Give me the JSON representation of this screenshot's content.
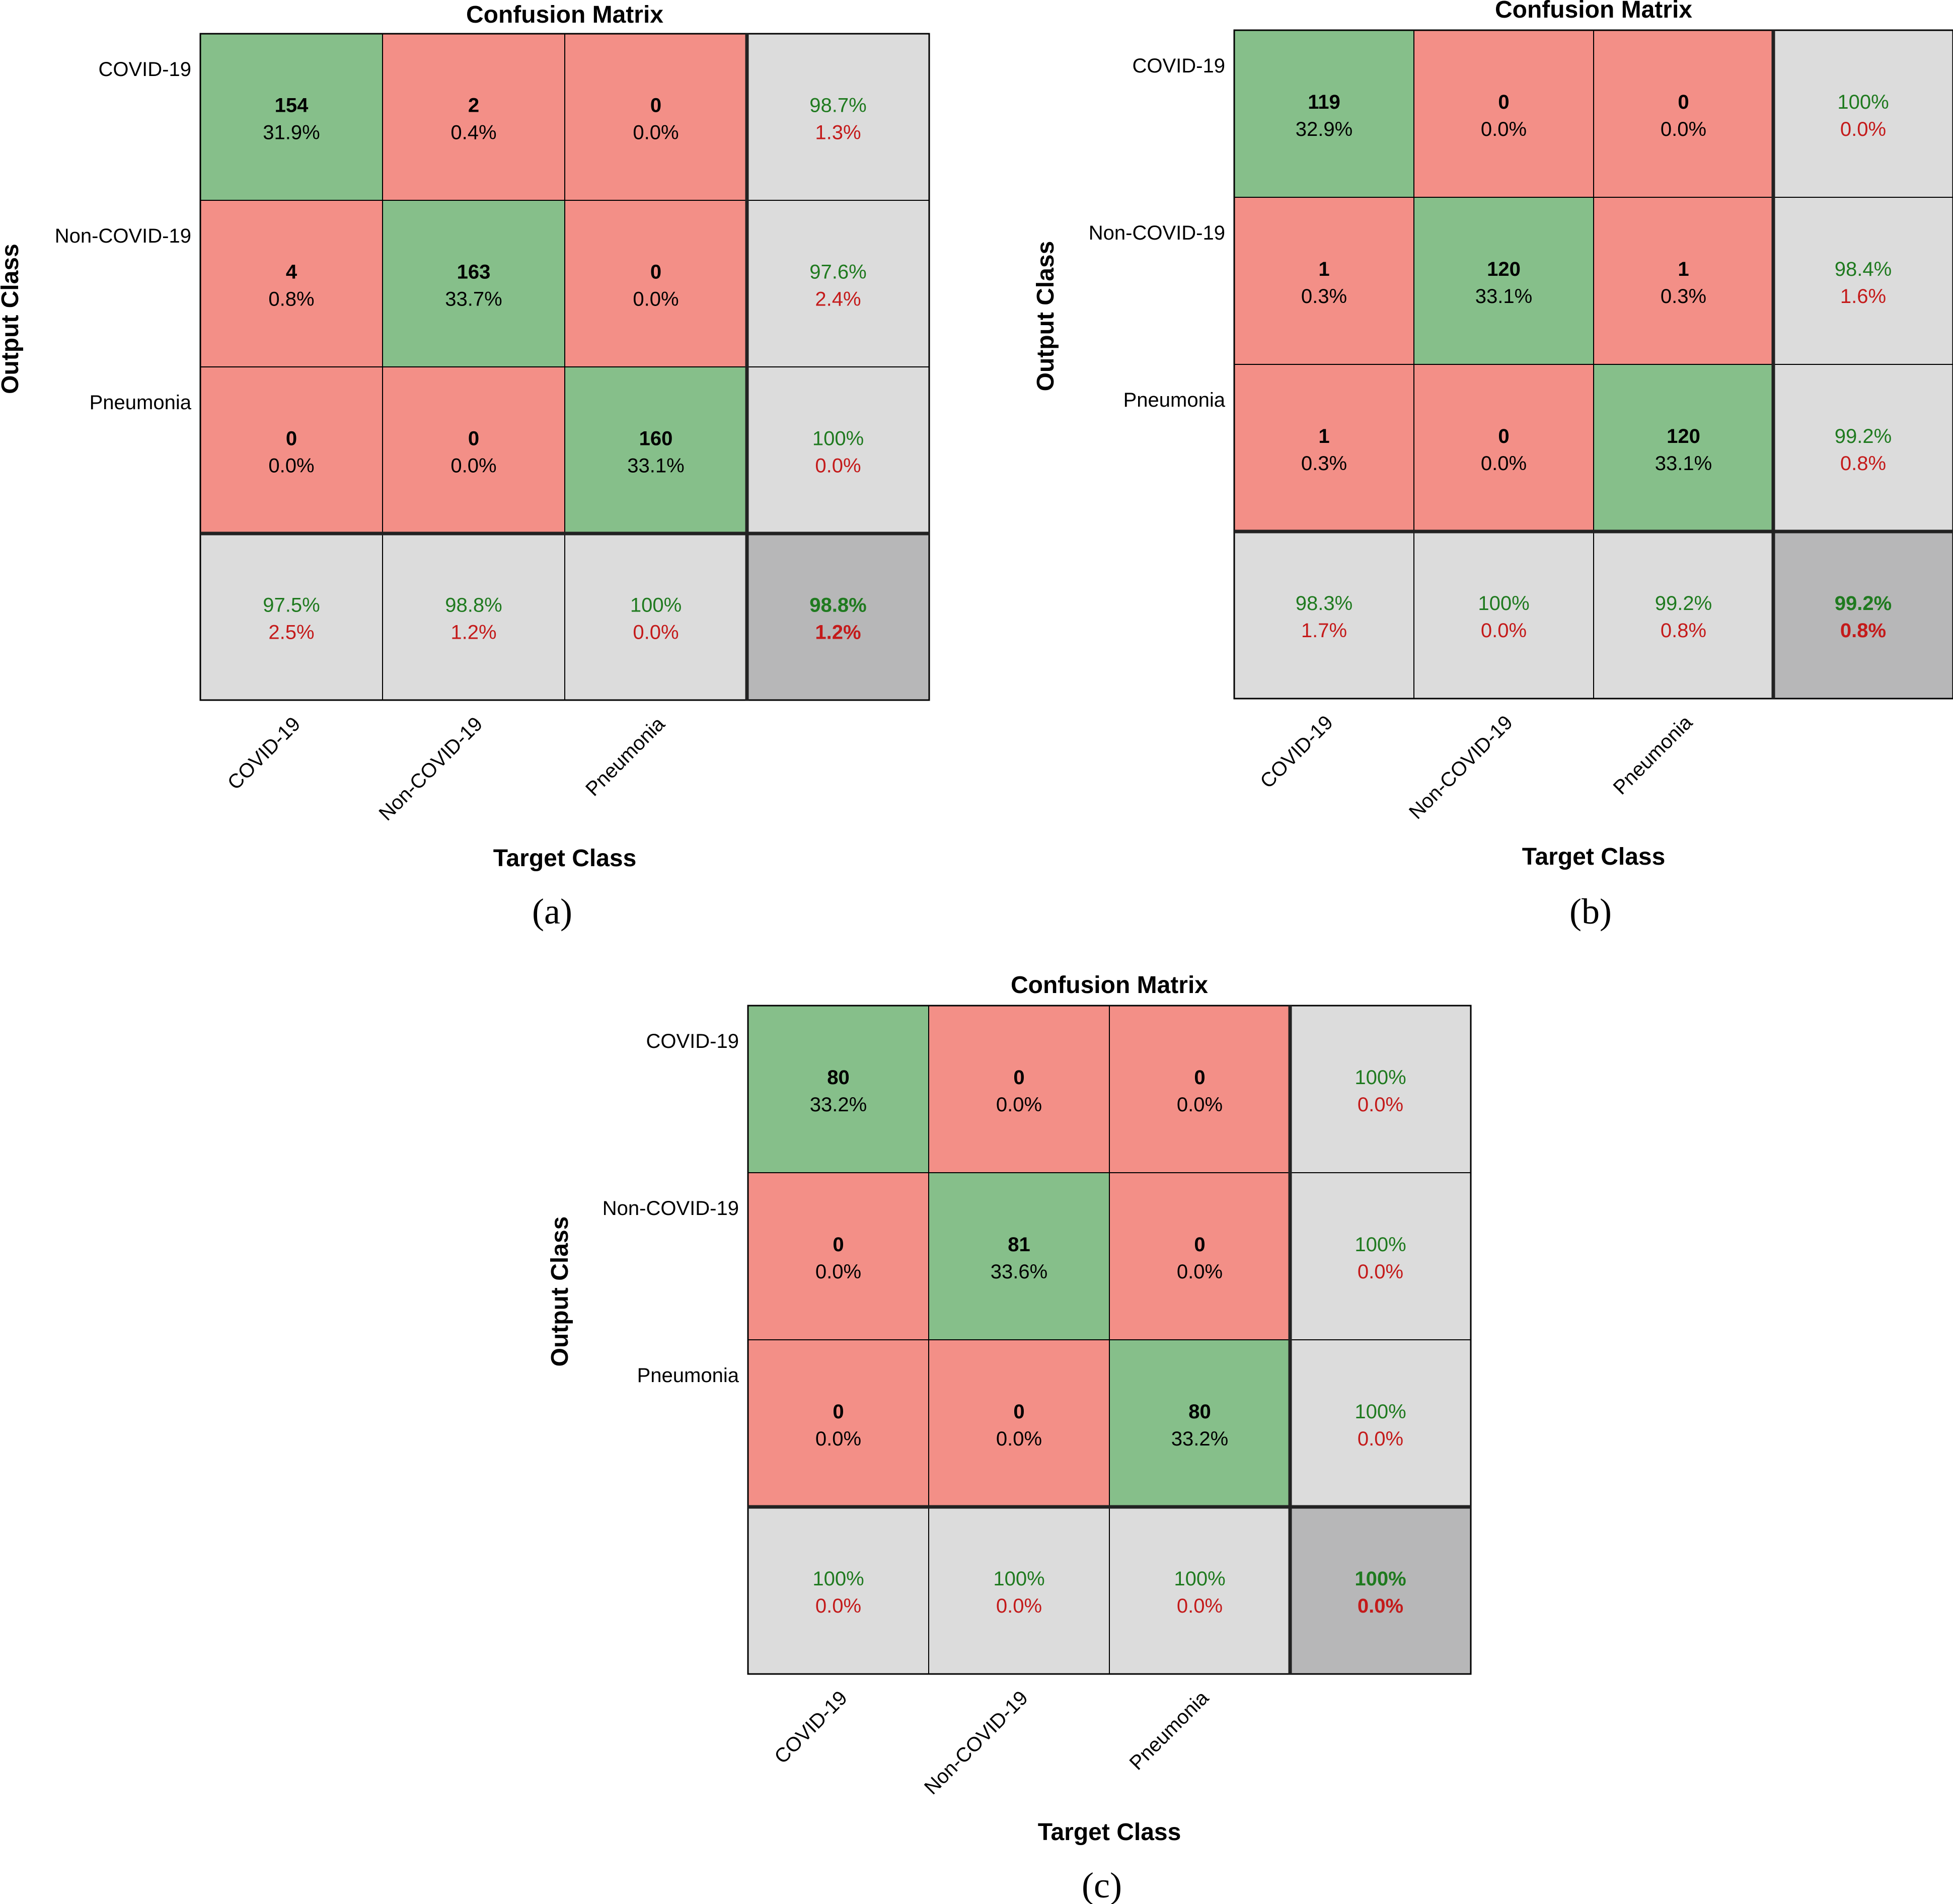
{
  "colors": {
    "correct": "#86bf8a",
    "incorrect": "#f38f87",
    "summary": "#dcdcdc",
    "overall": "#b7b7b8",
    "good_text": "#1f7a1f",
    "bad_text": "#c41a1a",
    "grid": "#000000"
  },
  "chart_data": [
    {
      "type": "table",
      "panel": "a",
      "caption": "(a)",
      "title": "Confusion Matrix",
      "xlabel": "Target Class",
      "ylabel": "Output Class",
      "classes": [
        "COVID-19",
        "Non-COVID-19",
        "Pneumonia"
      ],
      "counts": [
        [
          154,
          2,
          0
        ],
        [
          4,
          163,
          0
        ],
        [
          0,
          0,
          160
        ]
      ],
      "cell_percent": [
        [
          "31.9%",
          "0.4%",
          "0.0%"
        ],
        [
          "0.8%",
          "33.7%",
          "0.0%"
        ],
        [
          "0.0%",
          "0.0%",
          "33.1%"
        ]
      ],
      "row_summary": [
        [
          "98.7%",
          "1.3%"
        ],
        [
          "97.6%",
          "2.4%"
        ],
        [
          "100%",
          "0.0%"
        ]
      ],
      "col_summary": [
        [
          "97.5%",
          "2.5%"
        ],
        [
          "98.8%",
          "1.2%"
        ],
        [
          "100%",
          "0.0%"
        ]
      ],
      "overall": [
        "98.8%",
        "1.2%"
      ]
    },
    {
      "type": "table",
      "panel": "b",
      "caption": "(b)",
      "title": "Confusion Matrix",
      "xlabel": "Target Class",
      "ylabel": "Output Class",
      "classes": [
        "COVID-19",
        "Non-COVID-19",
        "Pneumonia"
      ],
      "counts": [
        [
          119,
          0,
          0
        ],
        [
          1,
          120,
          1
        ],
        [
          1,
          0,
          120
        ]
      ],
      "cell_percent": [
        [
          "32.9%",
          "0.0%",
          "0.0%"
        ],
        [
          "0.3%",
          "33.1%",
          "0.3%"
        ],
        [
          "0.3%",
          "0.0%",
          "33.1%"
        ]
      ],
      "row_summary": [
        [
          "100%",
          "0.0%"
        ],
        [
          "98.4%",
          "1.6%"
        ],
        [
          "99.2%",
          "0.8%"
        ]
      ],
      "col_summary": [
        [
          "98.3%",
          "1.7%"
        ],
        [
          "100%",
          "0.0%"
        ],
        [
          "99.2%",
          "0.8%"
        ]
      ],
      "overall": [
        "99.2%",
        "0.8%"
      ]
    },
    {
      "type": "table",
      "panel": "c",
      "caption": "(c)",
      "title": "Confusion Matrix",
      "xlabel": "Target Class",
      "ylabel": "Output Class",
      "classes": [
        "COVID-19",
        "Non-COVID-19",
        "Pneumonia"
      ],
      "counts": [
        [
          80,
          0,
          0
        ],
        [
          0,
          81,
          0
        ],
        [
          0,
          0,
          80
        ]
      ],
      "cell_percent": [
        [
          "33.2%",
          "0.0%",
          "0.0%"
        ],
        [
          "0.0%",
          "33.6%",
          "0.0%"
        ],
        [
          "0.0%",
          "0.0%",
          "33.2%"
        ]
      ],
      "row_summary": [
        [
          "100%",
          "0.0%"
        ],
        [
          "100%",
          "0.0%"
        ],
        [
          "100%",
          "0.0%"
        ]
      ],
      "col_summary": [
        [
          "100%",
          "0.0%"
        ],
        [
          "100%",
          "0.0%"
        ],
        [
          "100%",
          "0.0%"
        ]
      ],
      "overall": [
        "100%",
        "0.0%"
      ]
    }
  ]
}
